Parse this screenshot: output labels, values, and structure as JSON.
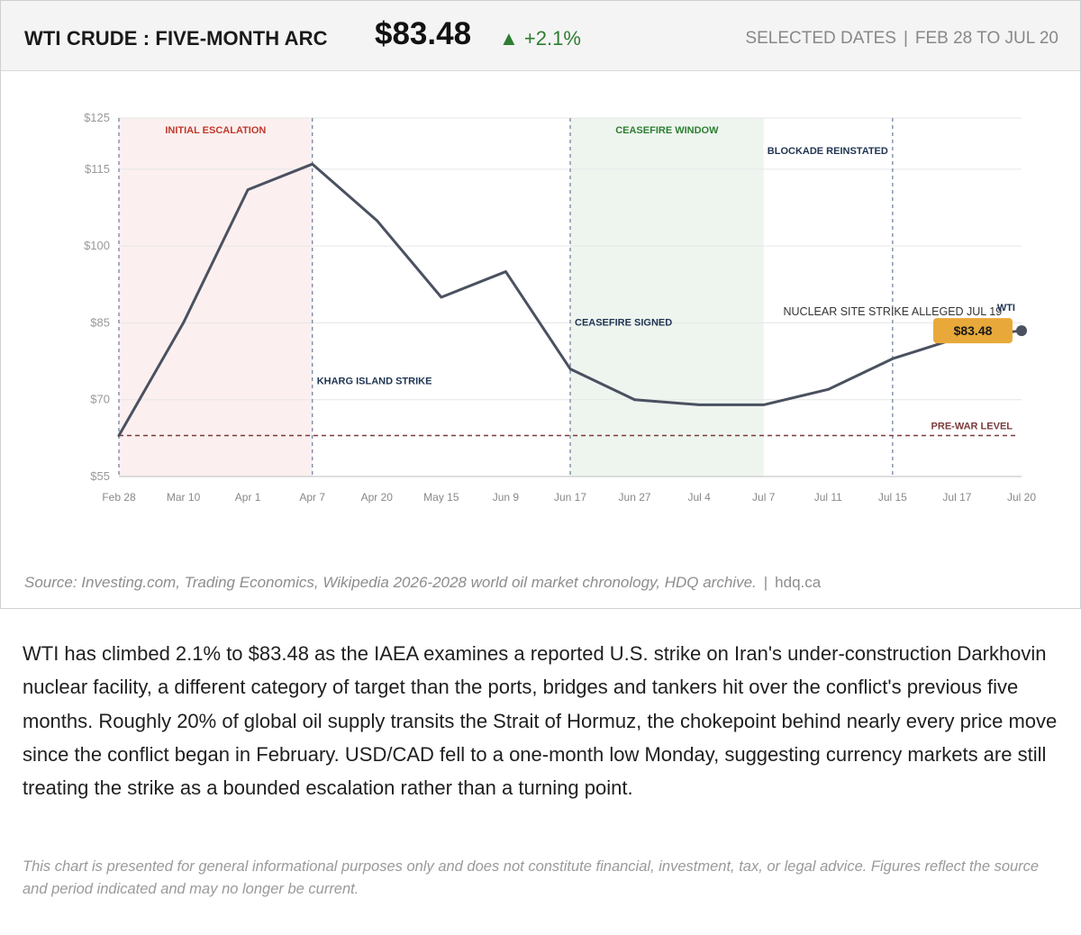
{
  "header": {
    "title": "WTI CRUDE : FIVE-MONTH ARC",
    "price": "$83.48",
    "change": "▲ +2.1%",
    "dates_label": "SELECTED DATES",
    "dates_separator": "|",
    "dates_range": "FEB 28 TO JUL 20"
  },
  "colors": {
    "line": "#4a5160",
    "escalation_band": "#fbf0ef",
    "ceasefire_band": "#eef5ef",
    "escalation_text": "#c0392b",
    "ceasefire_text": "#2e7d32",
    "annotation_text": "#1f3452",
    "prewar_line": "#7a3b3b",
    "badge": "#e8a93a",
    "change_green": "#2e7d32"
  },
  "chart_data": {
    "type": "line",
    "categories": [
      "Feb 28",
      "Mar 10",
      "Apr 1",
      "Apr 7",
      "Apr 20",
      "May 15",
      "Jun 9",
      "Jun 17",
      "Jun 27",
      "Jul 4",
      "Jul 7",
      "Jul 11",
      "Jul 15",
      "Jul 17",
      "Jul 20"
    ],
    "series": [
      {
        "name": "WTI",
        "values": [
          63,
          85,
          111,
          116,
          105,
          90,
          95,
          76,
          70,
          69,
          69,
          72,
          78,
          82,
          83.48
        ]
      }
    ],
    "yticks": [
      "$55",
      "$70",
      "$85",
      "$100",
      "$115",
      "$125"
    ],
    "ytick_values": [
      55,
      70,
      85,
      100,
      115,
      125
    ],
    "ylim": [
      55,
      125
    ],
    "grid": true,
    "bands": [
      {
        "label": "INITIAL ESCALATION",
        "from": 0,
        "to": 3,
        "style": "escalation"
      },
      {
        "label": "CEASEFIRE WINDOW",
        "from": 7,
        "to": 10,
        "style": "ceasefire"
      }
    ],
    "event_lines": [
      0,
      3,
      7,
      12
    ],
    "annotations": [
      {
        "text": "KHARG ISLAND STRIKE",
        "x": 3,
        "y": 73,
        "anchor": "start",
        "bold": true
      },
      {
        "text": "CEASEFIRE SIGNED",
        "x": 7,
        "y": 84.5,
        "anchor": "start",
        "bold": true
      },
      {
        "text": "BLOCKADE REINSTATED",
        "x": 12,
        "y": 118,
        "anchor": "end",
        "bold": true
      },
      {
        "text": "NUCLEAR SITE STRIKE ALLEGED JUL 19",
        "x": 12,
        "y": 86.5,
        "anchor": "middle",
        "bold": false
      }
    ],
    "reference_line": {
      "label": "PRE-WAR LEVEL",
      "value": 63
    },
    "last_value_label": "$83.48",
    "series_label": "WTI"
  },
  "source": {
    "text": "Source: Investing.com, Trading Economics, Wikipedia 2026-2028 world oil market chronology, HDQ archive.",
    "separator": "|",
    "site": "hdq.ca"
  },
  "article": {
    "paragraph": "WTI has climbed 2.1% to $83.48 as the IAEA examines a reported U.S. strike on Iran's under-construction Darkhovin nuclear facility, a different category of target than the ports, bridges and tankers hit over the conflict's previous five months. Roughly 20% of global oil supply transits the Strait of Hormuz, the chokepoint behind nearly every price move since the conflict began in February. USD/CAD fell to a one-month low Monday, suggesting currency markets are still treating the strike as a bounded escalation rather than a turning point.",
    "disclaimer": "This chart is presented for general informational purposes only and does not constitute financial, investment, tax, or legal advice. Figures reflect the source and period indicated and may no longer be current."
  }
}
